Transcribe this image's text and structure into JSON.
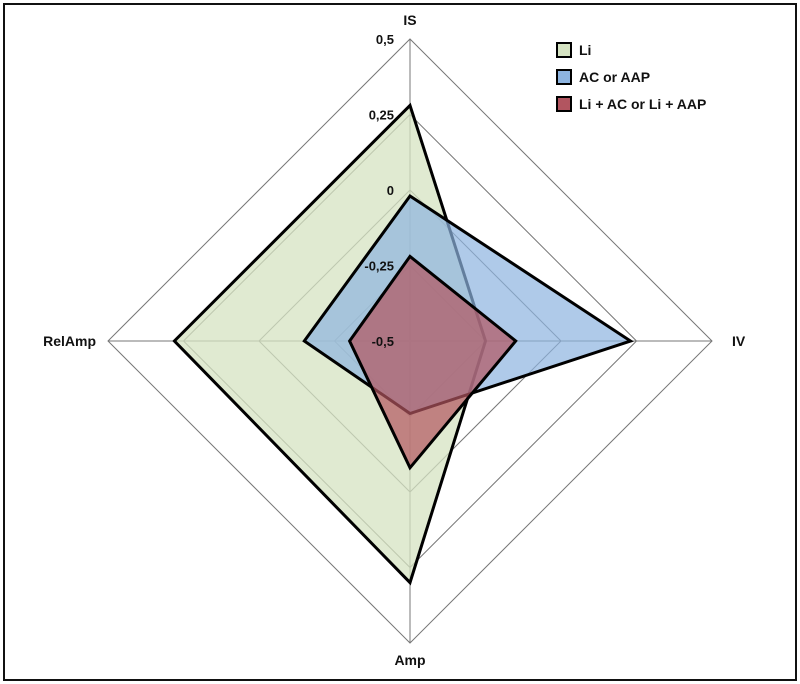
{
  "chart_data": {
    "type": "radar",
    "axes": [
      "IS",
      "IV",
      "Amp",
      "RelAmp"
    ],
    "rlim": [
      -0.5,
      0.5
    ],
    "ticks": [
      -0.5,
      -0.25,
      0,
      0.25,
      0.5
    ],
    "tick_labels": [
      "-0,5",
      "-0,25",
      "0",
      "0,25",
      "0,5"
    ],
    "grid": true,
    "legend_position": "top-right",
    "series": [
      {
        "name": "Li",
        "values": [
          0.28,
          -0.25,
          0.3,
          0.28
        ],
        "color": "#b9d3a0",
        "fill": "#d5e3c2"
      },
      {
        "name": "AC or AAP",
        "values": [
          -0.02,
          0.23,
          -0.26,
          -0.15
        ],
        "color": "#6fa0d8",
        "fill": "#8db4e0"
      },
      {
        "name": "Li + AC or Li + AAP",
        "values": [
          -0.22,
          -0.15,
          -0.08,
          -0.3
        ],
        "color": "#b2555c",
        "fill": "#b25560"
      }
    ]
  },
  "legend": {
    "items": [
      "Li",
      "AC or AAP",
      "Li + AC or Li + AAP"
    ]
  }
}
